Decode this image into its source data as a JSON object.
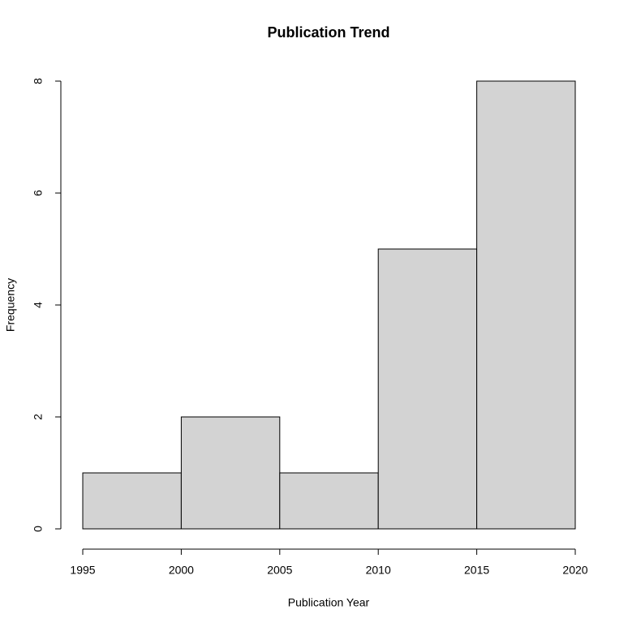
{
  "chart_data": {
    "type": "histogram",
    "title": "Publication Trend",
    "x_label": "Publication Year",
    "y_label": "Frequency",
    "bins": [
      1995,
      2000,
      2005,
      2010,
      2015,
      2020
    ],
    "counts": [
      1,
      2,
      1,
      5,
      8
    ],
    "color": "#d3d3d3",
    "edgecolor": "#000000",
    "xlim": [
      1995,
      2020
    ],
    "xticks": [
      1995,
      2000,
      2005,
      2010,
      2015,
      2020
    ],
    "ylim": [
      0,
      8
    ],
    "yticks": [
      0,
      2,
      4,
      6,
      8
    ],
    "grid": false
  }
}
